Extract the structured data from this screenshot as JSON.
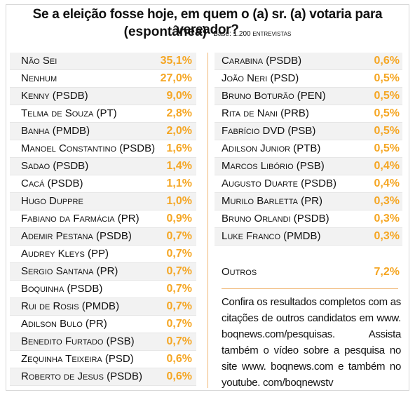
{
  "header": {
    "title": "Se a eleição fosse hoje, em quem o (a) sr. (a) votaria para vereador?",
    "subtitle": "(espontânea)",
    "base_label": "Base: 1.200",
    "base_unit": "entrevistas"
  },
  "left_column": [
    {
      "name": "Não Sei",
      "value": "35,1%"
    },
    {
      "name": "Nenhum",
      "value": "27,0%"
    },
    {
      "name": "Kenny (PSDB)",
      "value": "9,0%"
    },
    {
      "name": "Telma de Souza (PT)",
      "value": "2,8%"
    },
    {
      "name": "Banha (PMDB)",
      "value": "2,0%"
    },
    {
      "name": "Manoel Constantino (PSDB)",
      "value": "1,6%"
    },
    {
      "name": "Sadao (PSDB)",
      "value": "1,4%"
    },
    {
      "name": "Cacá (PSDB)",
      "value": "1,1%"
    },
    {
      "name": "Hugo Duppre",
      "value": "1,0%"
    },
    {
      "name": "Fabiano da Farmácia (PR)",
      "value": "0,9%"
    },
    {
      "name": "Ademir Pestana (PSDB)",
      "value": "0,7%"
    },
    {
      "name": "Audrey Kleys (PP)",
      "value": "0,7%"
    },
    {
      "name": "Sergio Santana (PR)",
      "value": "0,7%"
    },
    {
      "name": "Boquinha (PSDB)",
      "value": "0,7%"
    },
    {
      "name": "Rui de Rosis (PMDB)",
      "value": "0,7%"
    },
    {
      "name": "Adilson Bulo (PR)",
      "value": "0,7%"
    },
    {
      "name": "Benedito Furtado (PSB)",
      "value": "0,7%"
    },
    {
      "name": "Zequinha Teixeira (PSD)",
      "value": "0,6%"
    },
    {
      "name": "Roberto de Jesus (PSDB)",
      "value": "0,6%"
    }
  ],
  "right_column": [
    {
      "name": "Carabina (PSDB)",
      "value": "0,6%"
    },
    {
      "name": "João Neri (PSD)",
      "value": "0,5%"
    },
    {
      "name": "Bruno Boturão (PEN)",
      "value": "0,5%"
    },
    {
      "name": "Rita de Nani (PRB)",
      "value": "0,5%"
    },
    {
      "name": "Fabrício DVD (PSB)",
      "value": "0,5%"
    },
    {
      "name": "Adilson Junior (PTB)",
      "value": "0,5%"
    },
    {
      "name": "Marcos Libório (PSB)",
      "value": "0,4%"
    },
    {
      "name": "Augusto Duarte (PSDB)",
      "value": "0,4%"
    },
    {
      "name": "Murilo Barletta (PR)",
      "value": "0,3%"
    },
    {
      "name": "Bruno Orlandi (PSDB)",
      "value": "0,3%"
    },
    {
      "name": "Luke Franco (PMDB)",
      "value": "0,3%"
    }
  ],
  "outros": {
    "name": "Outros",
    "value": "7,2%"
  },
  "note": "Confira os resultados completos com as citações de outros candidatos em www. boqnews.com/pesquisas. Assista também o vídeo sobre a pesquisa no site www. boqnews.com e também no youtube. com/boqnewstv",
  "colors": {
    "accent": "#f5a623",
    "shade": "#f2f2f2",
    "divider": "#f0b878"
  }
}
